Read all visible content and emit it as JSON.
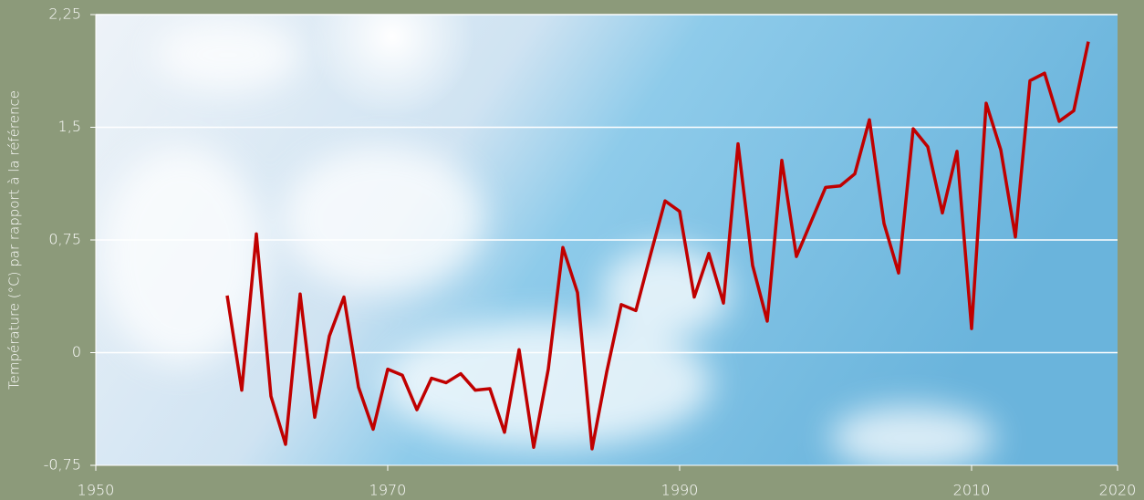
{
  "chart_data": {
    "type": "line",
    "y_label": "Température (°C) par rapport à la référence",
    "x": [
      1959,
      1960,
      1961,
      1962,
      1963,
      1964,
      1965,
      1966,
      1967,
      1968,
      1969,
      1970,
      1971,
      1972,
      1973,
      1974,
      1975,
      1976,
      1977,
      1978,
      1979,
      1980,
      1981,
      1982,
      1983,
      1984,
      1985,
      1986,
      1987,
      1988,
      1989,
      1990,
      1991,
      1992,
      1993,
      1994,
      1995,
      1996,
      1997,
      1998,
      1999,
      2000,
      2001,
      2002,
      2003,
      2004,
      2005,
      2006,
      2007,
      2008,
      2009,
      2010,
      2011,
      2012,
      2013,
      2014,
      2015,
      2016,
      2017,
      2018
    ],
    "series": [
      {
        "color": "#c00000",
        "values": [
          0.38,
          -0.25,
          0.79,
          -0.29,
          -0.61,
          0.39,
          -0.43,
          0.11,
          0.37,
          -0.23,
          -0.51,
          -0.11,
          -0.15,
          -0.38,
          -0.17,
          -0.2,
          -0.14,
          -0.25,
          -0.24,
          -0.53,
          0.02,
          -0.63,
          -0.11,
          0.7,
          0.4,
          -0.64,
          -0.13,
          0.32,
          0.28,
          0.65,
          1.01,
          0.94,
          0.37,
          0.66,
          0.33,
          1.39,
          0.58,
          0.21,
          1.28,
          0.64,
          0.87,
          1.1,
          1.11,
          1.19,
          1.55,
          0.86,
          0.53,
          1.49,
          1.37,
          0.93,
          1.34,
          0.16,
          1.66,
          1.35,
          0.77,
          1.81,
          1.86,
          1.54,
          1.61,
          2.07
        ]
      }
    ],
    "xlim": [
      1950,
      2020
    ],
    "xticks": [
      1950,
      1970,
      1990,
      2010,
      2020
    ],
    "ylim": [
      -0.75,
      2.25
    ],
    "yticks": [
      {
        "value": -0.75,
        "label": "-0,75"
      },
      0,
      {
        "value": 0.75,
        "label": "0,75"
      },
      {
        "value": 1.5,
        "label": "1,5"
      },
      {
        "value": 2.25,
        "label": "2,25"
      }
    ],
    "grid": true
  }
}
